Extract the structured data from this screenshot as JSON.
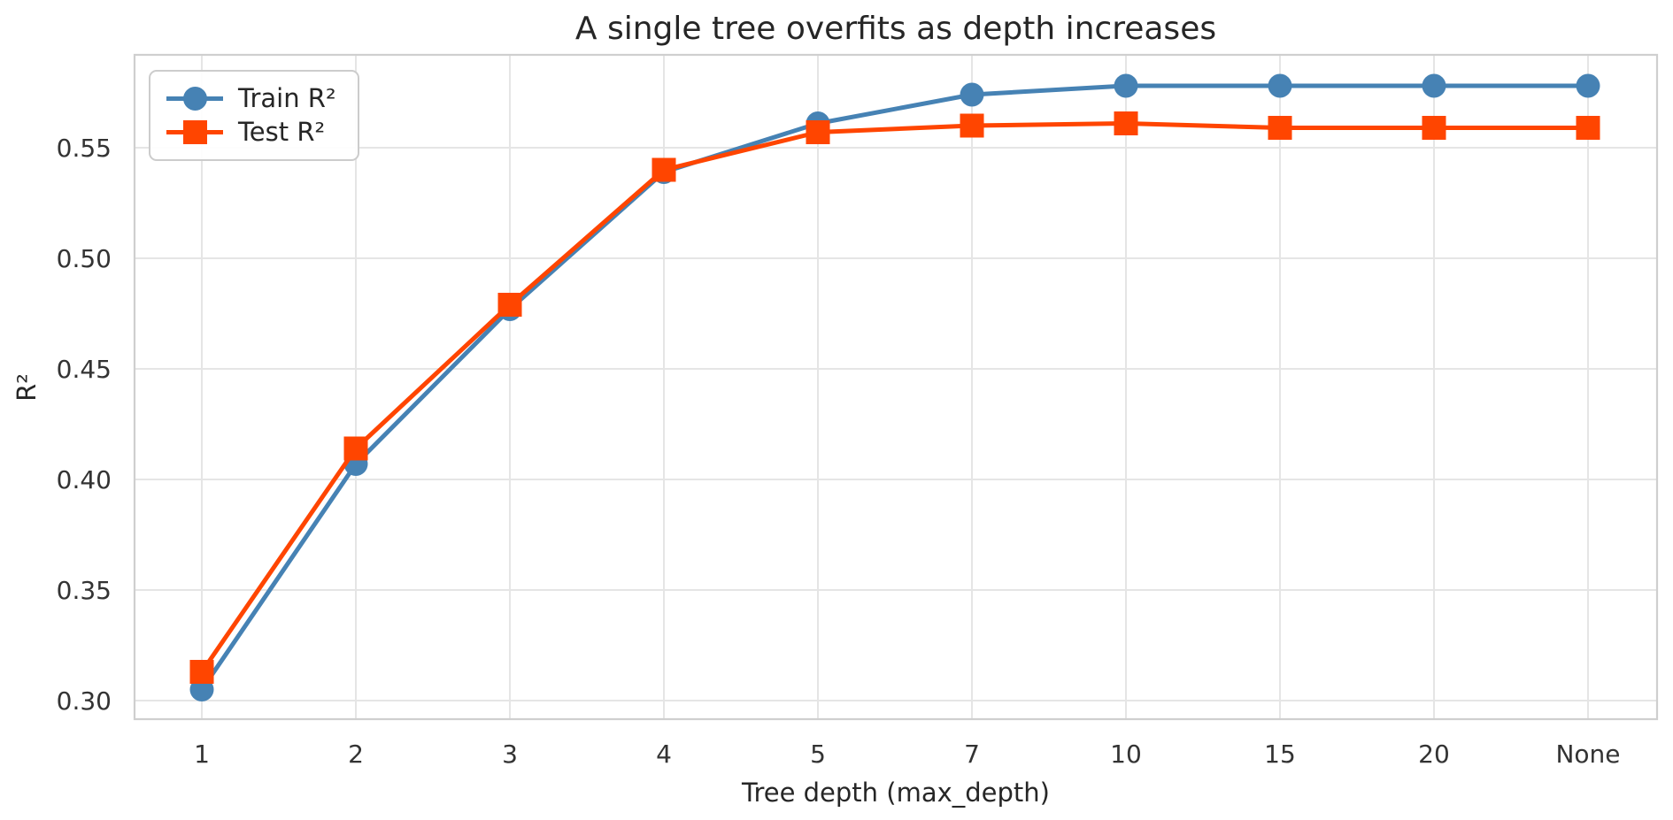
{
  "figure": {
    "title": "A single tree overfits as depth increases",
    "xlabel": "Tree depth (max_depth)",
    "ylabel": "R²"
  },
  "chart_data": {
    "type": "line",
    "title": "A single tree overfits as depth increases",
    "xlabel": "Tree depth (max_depth)",
    "ylabel": "R²",
    "categories": [
      "1",
      "2",
      "3",
      "4",
      "5",
      "7",
      "10",
      "15",
      "20",
      "None"
    ],
    "series": [
      {
        "name": "Train R²",
        "color": "#4682B4",
        "marker": "circle",
        "values": [
          0.305,
          0.407,
          0.477,
          0.539,
          0.561,
          0.574,
          0.578,
          0.578,
          0.578,
          0.578
        ]
      },
      {
        "name": "Test R²",
        "color": "#FF4500",
        "marker": "square",
        "values": [
          0.313,
          0.414,
          0.479,
          0.54,
          0.557,
          0.56,
          0.561,
          0.559,
          0.559,
          0.559
        ]
      }
    ],
    "ytick_values": [
      0.3,
      0.35,
      0.4,
      0.45,
      0.5,
      0.55
    ],
    "ytick_labels": [
      "0.30",
      "0.35",
      "0.40",
      "0.45",
      "0.50",
      "0.55"
    ],
    "ylim": [
      0.2916,
      0.592
    ],
    "grid": true,
    "legend_position": "upper left",
    "colors": {
      "background": "#FFFFFF",
      "grid": "#E5E5E5",
      "spine": "#CFCFCF",
      "text": "#262626"
    }
  },
  "legend": {
    "items": [
      {
        "label": "Train R²"
      },
      {
        "label": "Test R²"
      }
    ]
  }
}
